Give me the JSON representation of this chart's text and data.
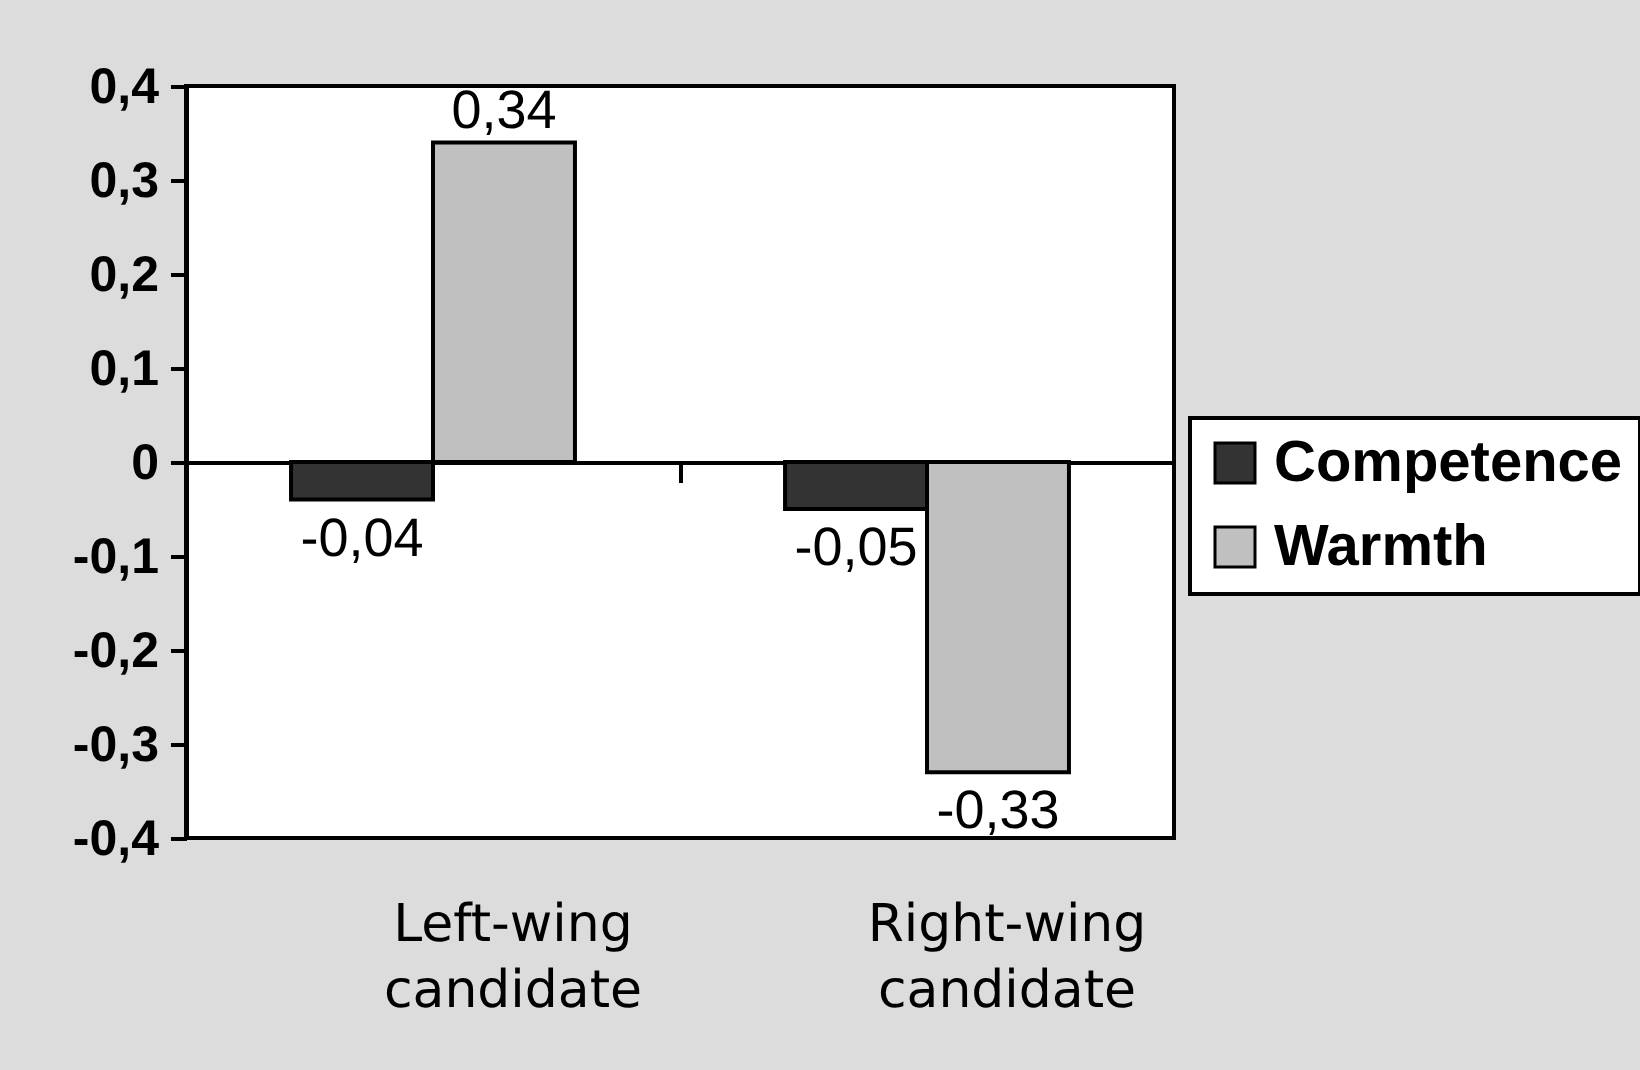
{
  "chart_data": {
    "type": "bar",
    "categories": [
      "Left-wing candidate",
      "Right-wing candidate"
    ],
    "series": [
      {
        "name": "Competence",
        "color": "#333333",
        "values": [
          -0.04,
          -0.05
        ],
        "value_labels": [
          "-0,04",
          "-0,05"
        ]
      },
      {
        "name": "Warmth",
        "color": "#c0c0c0",
        "values": [
          0.34,
          -0.33
        ],
        "value_labels": [
          "0,34",
          "-0,33"
        ]
      }
    ],
    "ylim": [
      -0.4,
      0.4
    ],
    "yticks": [
      {
        "value": -0.4,
        "label": "-0,4"
      },
      {
        "value": -0.3,
        "label": "-0,3"
      },
      {
        "value": -0.2,
        "label": "-0,2"
      },
      {
        "value": -0.1,
        "label": "-0,1"
      },
      0,
      {
        "value": 0.1,
        "label": "0,1"
      },
      {
        "value": 0.2,
        "label": "0,2"
      },
      {
        "value": 0.3,
        "label": "0,3"
      },
      {
        "value": 0.4,
        "label": "0,4"
      }
    ],
    "legend": "right"
  }
}
